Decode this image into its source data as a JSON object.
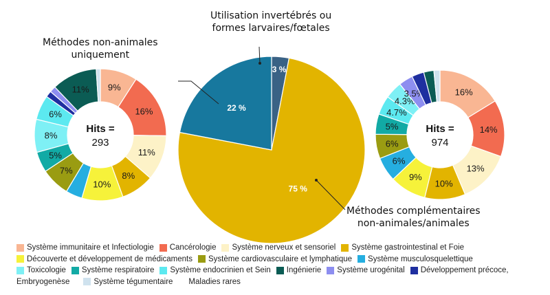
{
  "charts_labels": {
    "left_title_line1": "Méthodes non-animales",
    "left_title_line2": "uniquement",
    "top_label_line1": "Utilisation invertébrés ou",
    "top_label_line2": "formes larvaires/fœtales",
    "bottom_label_line1": "Méthodes complémentaires",
    "bottom_label_line2": "non-animales/animales"
  },
  "colors": {
    "Système immunitaire et Infectiologie": "#f9b693",
    "Cancérologie": "#f26b50",
    "Système nerveux et sensoriel": "#fdf2c7",
    "Système gastrointestinal et Foie": "#e2b400",
    "Découverte et développement de médicaments": "#f6f23a",
    "Système cardiovasculaire et lymphatique": "#9a9c12",
    "Système musculosquelettique": "#25aee0",
    "Toxicologie": "#7ef0f5",
    "Système respiratoire": "#12aaa5",
    "Système endocrinien et Sein": "#5ce9f0",
    "Ingénierie": "#0b5c54",
    "Système urogénital": "#8d8ef0",
    "Développement précoce, Embryogenèse": "#1f2fa0",
    "Système tégumentaire": "#cfe2ee",
    "Maladies rares": "#ffffff",
    "center_gold": "#e2b400",
    "center_blue": "#17789e",
    "center_slate": "#3a6285"
  },
  "chart_data": [
    {
      "type": "pie",
      "donut": true,
      "title": "Méthodes non-animales uniquement",
      "center_label": "Hits =",
      "center_value": "293",
      "slices": [
        {
          "name": "Système immunitaire et Infectiologie",
          "value": 9,
          "label": "9%"
        },
        {
          "name": "Cancérologie",
          "value": 16,
          "label": "16%"
        },
        {
          "name": "Système nerveux et sensoriel",
          "value": 11,
          "label": "11%"
        },
        {
          "name": "Système gastrointestinal et Foie",
          "value": 8,
          "label": "8%"
        },
        {
          "name": "Découverte et développement de médicaments",
          "value": 10,
          "label": "10%"
        },
        {
          "name": "Système musculosquelettique",
          "value": 4,
          "label": ""
        },
        {
          "name": "Système cardiovasculaire et lymphatique",
          "value": 7,
          "label": "7%"
        },
        {
          "name": "Système respiratoire",
          "value": 5,
          "label": "5%"
        },
        {
          "name": "Toxicologie",
          "value": 8,
          "label": "8%"
        },
        {
          "name": "Système endocrinien et Sein",
          "value": 6,
          "label": "6%"
        },
        {
          "name": "Développement précoce, Embryogenèse",
          "value": 1.5,
          "label": ""
        },
        {
          "name": "Système urogénital",
          "value": 1.5,
          "label": ""
        },
        {
          "name": "Ingénierie",
          "value": 11,
          "label": "11%"
        },
        {
          "name": "Système tégumentaire",
          "value": 1,
          "label": ""
        }
      ]
    },
    {
      "type": "pie",
      "donut": false,
      "slices": [
        {
          "name": "Utilisation invertébrés ou formes larvaires/fœtales",
          "value": 3,
          "label": "3 %",
          "color_key": "center_slate"
        },
        {
          "name": "Méthodes complémentaires non-animales/animales",
          "value": 75,
          "label": "75 %",
          "color_key": "center_gold"
        },
        {
          "name": "Méthodes non-animales uniquement",
          "value": 22,
          "label": "22 %",
          "color_key": "center_blue"
        }
      ]
    },
    {
      "type": "pie",
      "donut": true,
      "title": "Méthodes complémentaires non-animales/animales",
      "center_label": "Hits =",
      "center_value": "974",
      "slices": [
        {
          "name": "Système immunitaire et Infectiologie",
          "value": 16,
          "label": "16%"
        },
        {
          "name": "Cancérologie",
          "value": 14,
          "label": "14%"
        },
        {
          "name": "Système nerveux et sensoriel",
          "value": 13,
          "label": "13%"
        },
        {
          "name": "Système gastrointestinal et Foie",
          "value": 10,
          "label": "10%"
        },
        {
          "name": "Découverte et développement de médicaments",
          "value": 9,
          "label": "9%"
        },
        {
          "name": "Système musculosquelettique",
          "value": 6,
          "label": "6%"
        },
        {
          "name": "Système cardiovasculaire et lymphatique",
          "value": 6,
          "label": "6%"
        },
        {
          "name": "Système respiratoire",
          "value": 5,
          "label": "5%"
        },
        {
          "name": "Système endocrinien et Sein",
          "value": 4.7,
          "label": "4.7%"
        },
        {
          "name": "Toxicologie",
          "value": 4.3,
          "label": "4.3%"
        },
        {
          "name": "Système urogénital",
          "value": 3.5,
          "label": "3.5%"
        },
        {
          "name": "Développement précoce, Embryogenèse",
          "value": 3,
          "label": ""
        },
        {
          "name": "Ingénierie",
          "value": 2.5,
          "label": ""
        },
        {
          "name": "Système tégumentaire",
          "value": 1.5,
          "label": ""
        }
      ]
    }
  ],
  "legend": [
    [
      {
        "name": "Système immunitaire et Infectiologie"
      },
      {
        "name": "Cancérologie"
      },
      {
        "name": "Système nerveux et sensoriel"
      },
      {
        "name": "Système gastrointestinal et Foie"
      }
    ],
    [
      {
        "name": "Découverte et développement de médicaments"
      },
      {
        "name": "Système cardiovasculaire et lymphatique"
      },
      {
        "name": "Système musculosquelettique"
      }
    ],
    [
      {
        "name": "Toxicologie"
      },
      {
        "name": "Système respiratoire"
      },
      {
        "name": "Système endocrinien et Sein"
      },
      {
        "name": "Ingénierie"
      },
      {
        "name": "Système urogénital"
      },
      {
        "name": "Développement précoce,"
      }
    ],
    [
      {
        "name": "Système tégumentaire",
        "prefix": "Embryogenèse"
      },
      {
        "name": "Maladies rares"
      }
    ]
  ]
}
